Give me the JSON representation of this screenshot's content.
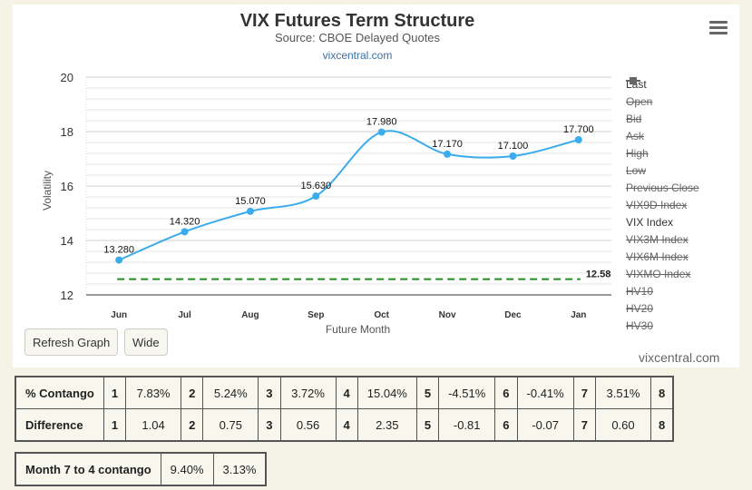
{
  "chart": {
    "title": "VIX Futures Term Structure",
    "subtitle": "Source: CBOE Delayed Quotes",
    "site_link": "vixcentral.com",
    "watermark": "vixcentral.com",
    "menu_icon": "hamburger-menu-icon"
  },
  "chart_data": {
    "type": "line",
    "title": "VIX Futures Term Structure",
    "subtitle": "Source: CBOE Delayed Quotes",
    "xlabel": "Future Month",
    "ylabel": "Volatility",
    "categories": [
      "Jun",
      "Jul",
      "Aug",
      "Sep",
      "Oct",
      "Nov",
      "Dec",
      "Jan"
    ],
    "ylim": [
      12,
      20
    ],
    "yticks": [
      "12",
      "14",
      "16",
      "18",
      "20"
    ],
    "grid": true,
    "legend_position": "right",
    "series": [
      {
        "name": "Last",
        "color": "#3aabeb",
        "style": "solid-markers",
        "values": [
          13.28,
          14.32,
          15.07,
          15.63,
          17.98,
          17.17,
          17.1,
          17.7
        ],
        "labels": [
          "13.280",
          "14.320",
          "15.070",
          "15.630",
          "17.980",
          "17.170",
          "17.100",
          "17.700"
        ]
      },
      {
        "name": "VIX Index",
        "color": "#228b22",
        "style": "dashed",
        "values": [
          12.58,
          12.58,
          12.58,
          12.58,
          12.58,
          12.58,
          12.58,
          12.58
        ],
        "end_label": "12.58"
      }
    ]
  },
  "legend": [
    {
      "label": "Last",
      "enabled": true,
      "symbol": "line-dot",
      "color": "#3aabeb"
    },
    {
      "label": "Open",
      "enabled": false,
      "symbol": "line-diamond",
      "color": "#666666"
    },
    {
      "label": "Bid",
      "enabled": false,
      "symbol": "line-square",
      "color": "#666666"
    },
    {
      "label": "Ask",
      "enabled": false,
      "symbol": "line-triangle",
      "color": "#666666"
    },
    {
      "label": "High",
      "enabled": false,
      "symbol": "line-triangle-down",
      "color": "#666666"
    },
    {
      "label": "Low",
      "enabled": false,
      "symbol": "line-dot",
      "color": "#666666"
    },
    {
      "label": "Previous Close",
      "enabled": false,
      "symbol": "line-diamond",
      "color": "#666666"
    },
    {
      "label": "VIX9D Index",
      "enabled": false,
      "symbol": "line",
      "color": "#666666"
    },
    {
      "label": "VIX Index",
      "enabled": true,
      "symbol": "line",
      "color": "#228b22"
    },
    {
      "label": "VIX3M Index",
      "enabled": false,
      "symbol": "line",
      "color": "#666666"
    },
    {
      "label": "VIX6M Index",
      "enabled": false,
      "symbol": "dotted",
      "color": "#666666"
    },
    {
      "label": "VIXMO Index",
      "enabled": false,
      "symbol": "dashed",
      "color": "#666666"
    },
    {
      "label": "HV10",
      "enabled": false,
      "symbol": "dashed",
      "color": "#666666"
    },
    {
      "label": "HV20",
      "enabled": false,
      "symbol": "dashed",
      "color": "#666666"
    },
    {
      "label": "HV30",
      "enabled": false,
      "symbol": "dashed",
      "color": "#666666"
    }
  ],
  "buttons": {
    "refresh": "Refresh Graph",
    "wide": "Wide"
  },
  "stats": {
    "contango_label": "% Contango",
    "difference_label": "Difference",
    "indices": [
      "1",
      "2",
      "3",
      "4",
      "5",
      "6",
      "7",
      "8"
    ],
    "contango": [
      "7.83%",
      "5.24%",
      "3.72%",
      "15.04%",
      "-4.51%",
      "-0.41%",
      "3.51%"
    ],
    "difference": [
      "1.04",
      "0.75",
      "0.56",
      "2.35",
      "-0.81",
      "-0.07",
      "0.60"
    ]
  },
  "month74": {
    "label": "Month 7 to 4 contango",
    "value1": "9.40%",
    "value2": "3.13%"
  }
}
